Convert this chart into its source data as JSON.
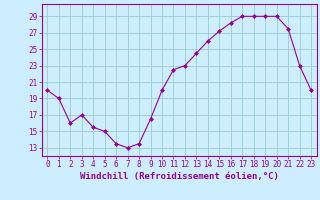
{
  "x": [
    0,
    1,
    2,
    3,
    4,
    5,
    6,
    7,
    8,
    9,
    10,
    11,
    12,
    13,
    14,
    15,
    16,
    17,
    18,
    19,
    20,
    21,
    22,
    23
  ],
  "y": [
    20,
    19,
    16,
    17,
    15.5,
    15,
    13.5,
    13,
    13.5,
    16.5,
    20,
    22.5,
    23,
    24.5,
    26,
    27.2,
    28.2,
    29,
    29,
    29,
    29,
    27.5,
    23,
    20
  ],
  "line_color": "#990099",
  "marker": "D",
  "marker_size": 2,
  "bg_color": "#cceeff",
  "grid_color": "#99cccc",
  "xlabel": "Windchill (Refroidissement éolien,°C)",
  "xlabel_color": "#990099",
  "xlabel_fontsize": 6.5,
  "yticks": [
    13,
    15,
    17,
    19,
    21,
    23,
    25,
    27,
    29
  ],
  "ylim": [
    12.0,
    30.5
  ],
  "xlim": [
    -0.5,
    23.5
  ],
  "xticks": [
    0,
    1,
    2,
    3,
    4,
    5,
    6,
    7,
    8,
    9,
    10,
    11,
    12,
    13,
    14,
    15,
    16,
    17,
    18,
    19,
    20,
    21,
    22,
    23
  ],
  "tick_color": "#990099",
  "tick_fontsize": 5.5,
  "spine_color": "#990099"
}
